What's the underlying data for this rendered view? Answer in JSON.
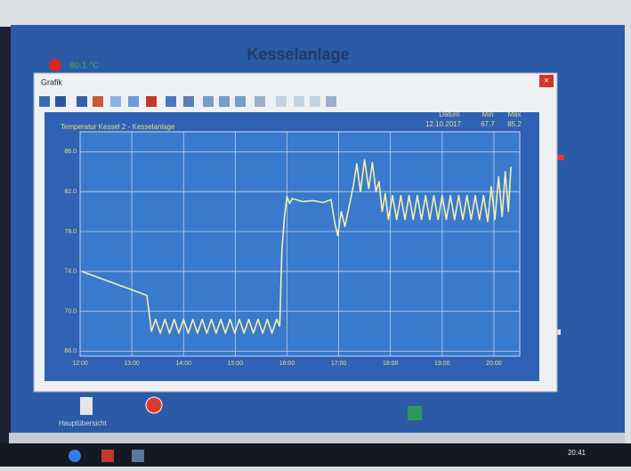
{
  "header": {
    "title": "Kesselanlage",
    "temperature": "80.1 °C"
  },
  "window": {
    "title": "Grafik"
  },
  "chart_data": {
    "type": "line",
    "title": "Temperatur Kessel 2 - Kesselanlage",
    "date_label": "Datum",
    "date": "12.10.2017",
    "min_label": "Min",
    "min": 67.7,
    "max_label": "Max",
    "max": 85.2,
    "color": "#f3efb0",
    "grid": true,
    "xlim": [
      0,
      8.5
    ],
    "ylim": [
      65.5,
      88
    ],
    "xticks": [
      {
        "value": 0,
        "label": "12:00"
      },
      {
        "value": 1,
        "label": "13:00"
      },
      {
        "value": 2,
        "label": "14:00"
      },
      {
        "value": 3,
        "label": "15:00"
      },
      {
        "value": 4,
        "label": "16:00"
      },
      {
        "value": 5,
        "label": "17:00"
      },
      {
        "value": 6,
        "label": "18:00"
      },
      {
        "value": 7,
        "label": "19:00"
      },
      {
        "value": 8,
        "label": "20:00"
      }
    ],
    "yticks": [
      {
        "value": 66,
        "label": "66.0"
      },
      {
        "value": 70,
        "label": "70.0"
      },
      {
        "value": 74,
        "label": "74.0"
      },
      {
        "value": 78,
        "label": "78.0"
      },
      {
        "value": 82,
        "label": "82.0"
      },
      {
        "value": 86,
        "label": "86.0"
      }
    ],
    "x": [
      0.03,
      1.29,
      1.38,
      1.46,
      1.55,
      1.64,
      1.73,
      1.82,
      1.91,
      2.0,
      2.09,
      2.18,
      2.27,
      2.36,
      2.45,
      2.54,
      2.63,
      2.72,
      2.81,
      2.9,
      2.99,
      3.08,
      3.17,
      3.26,
      3.35,
      3.44,
      3.53,
      3.62,
      3.71,
      3.8,
      3.86,
      3.9,
      3.95,
      4.0,
      4.05,
      4.1,
      4.3,
      4.5,
      4.7,
      4.85,
      4.92,
      4.98,
      5.05,
      5.12,
      5.2,
      5.28,
      5.35,
      5.42,
      5.5,
      5.58,
      5.65,
      5.72,
      5.78,
      5.84,
      5.9,
      5.96,
      6.04,
      6.12,
      6.2,
      6.28,
      6.36,
      6.44,
      6.52,
      6.6,
      6.68,
      6.76,
      6.84,
      6.92,
      7.0,
      7.08,
      7.16,
      7.24,
      7.32,
      7.4,
      7.48,
      7.56,
      7.64,
      7.72,
      7.8,
      7.88,
      7.95,
      8.02,
      8.09,
      8.16,
      8.22,
      8.28,
      8.33
    ],
    "values": [
      74.0,
      71.6,
      68.0,
      69.2,
      67.8,
      69.2,
      67.8,
      69.2,
      67.8,
      69.2,
      67.8,
      69.2,
      67.8,
      69.2,
      67.8,
      69.2,
      67.8,
      69.2,
      67.8,
      69.2,
      67.8,
      69.2,
      67.8,
      69.2,
      67.8,
      69.2,
      67.8,
      69.2,
      67.8,
      69.2,
      68.5,
      76.0,
      79.5,
      81.5,
      80.8,
      81.3,
      81.0,
      81.1,
      80.9,
      81.2,
      79.0,
      77.6,
      80.0,
      78.5,
      80.5,
      82.5,
      84.8,
      82.0,
      85.2,
      82.3,
      84.9,
      82.0,
      83.0,
      80.0,
      81.8,
      79.2,
      81.6,
      79.2,
      81.6,
      79.2,
      81.6,
      79.2,
      81.6,
      79.2,
      81.6,
      79.2,
      81.6,
      79.2,
      81.6,
      79.2,
      81.6,
      79.2,
      81.6,
      79.2,
      81.6,
      79.2,
      81.6,
      79.2,
      81.6,
      79.0,
      82.5,
      79.2,
      83.5,
      79.5,
      84.0,
      80.0,
      84.5
    ]
  },
  "footer": {
    "home": "Hauptübersicht"
  },
  "taskbar": {
    "time": "20:41"
  }
}
